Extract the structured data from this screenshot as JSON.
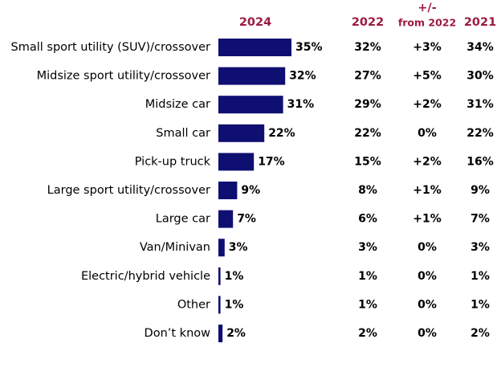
{
  "chart_data": {
    "type": "bar",
    "orientation": "horizontal",
    "title": "2024",
    "color": "#0f0f72",
    "header_color": "#9c1b3f",
    "categories": [
      "Small sport utility (SUV)/crossover",
      "Midsize sport utility/crossover",
      "Midsize car",
      "Small car",
      "Pick-up truck",
      "Large sport utility/crossover",
      "Large car",
      "Van/Minivan",
      "Electric/hybrid vehicle",
      "Other",
      "Don’t know"
    ],
    "values": [
      35,
      32,
      31,
      22,
      17,
      9,
      7,
      3,
      1,
      1,
      2
    ],
    "value_labels": [
      "35%",
      "32%",
      "31%",
      "22%",
      "17%",
      "9%",
      "7%",
      "3%",
      "1%",
      "1%",
      "2%"
    ]
  },
  "table": {
    "columns": [
      {
        "header": [
          "2022"
        ],
        "cells": [
          "32%",
          "27%",
          "29%",
          "22%",
          "15%",
          "8%",
          "6%",
          "3%",
          "1%",
          "1%",
          "2%"
        ]
      },
      {
        "header": [
          "+/-",
          "from 2022"
        ],
        "cells": [
          "+3%",
          "+5%",
          "+2%",
          "0%",
          "+2%",
          "+1%",
          "+1%",
          "0%",
          "0%",
          "0%",
          "0%"
        ]
      },
      {
        "header": [
          "2021"
        ],
        "cells": [
          "34%",
          "30%",
          "31%",
          "22%",
          "16%",
          "9%",
          "7%",
          "3%",
          "1%",
          "1%",
          "2%"
        ]
      }
    ]
  }
}
